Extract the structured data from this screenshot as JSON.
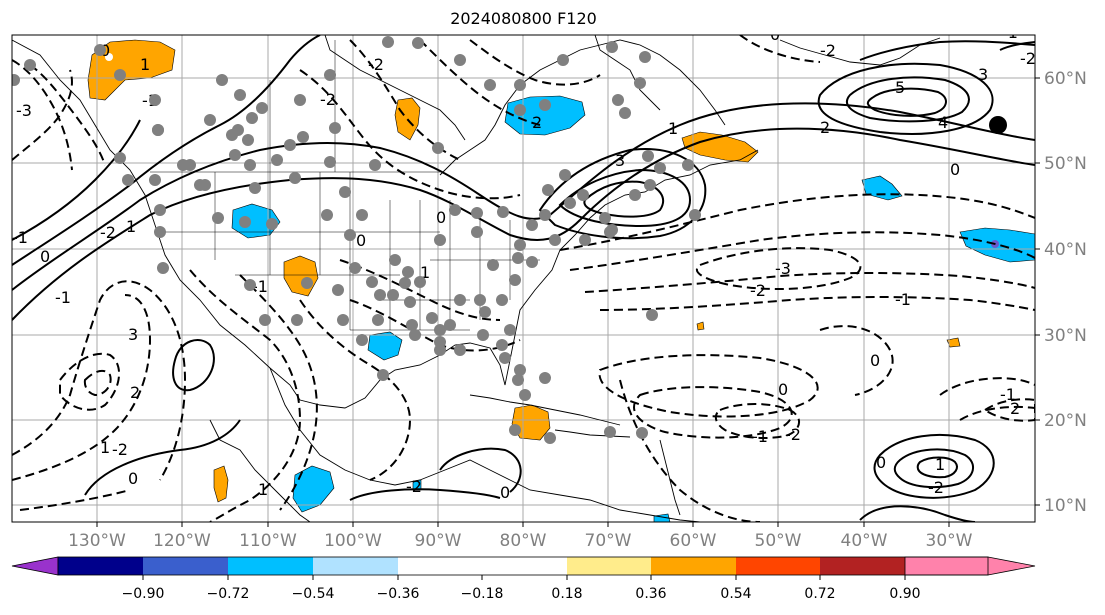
{
  "title": "2024080800 F120",
  "map": {
    "lon_ticks": [
      "130°W",
      "120°W",
      "110°W",
      "100°W",
      "90°W",
      "80°W",
      "70°W",
      "60°W",
      "50°W",
      "40°W",
      "30°W"
    ],
    "lat_ticks": [
      "60°N",
      "50°N",
      "40°N",
      "30°N",
      "20°N",
      "10°N"
    ],
    "contour_labels": [
      "-3",
      "-2",
      "-1",
      "0",
      "1",
      "2",
      "3",
      "4",
      "5",
      "-2",
      "-1",
      "0",
      "1",
      "2",
      "3",
      "-3",
      "-2",
      "-1",
      "0",
      "-2",
      "-1",
      "0",
      "1",
      "-1",
      "2",
      "-2",
      "0",
      "-1",
      "1",
      "2",
      "3",
      "-2",
      "0",
      "1",
      "-2",
      "0",
      "1",
      "0",
      "-1",
      "0",
      "-2",
      "-2",
      "-1",
      "0",
      "1",
      "0",
      "-2"
    ],
    "colors": {
      "land_outline": "#000000",
      "grid": "#a8a8a8",
      "station_dot": "#808080",
      "positive_anomaly": "#ffa500",
      "negative_anomaly": "#00bfff"
    }
  },
  "colorbar": {
    "ticks": [
      "−0.90",
      "−0.72",
      "−0.54",
      "−0.36",
      "−0.18",
      "0.18",
      "0.36",
      "0.54",
      "0.72",
      "0.90"
    ],
    "colors": [
      "#9932cc",
      "#00008b",
      "#3a5fcd",
      "#00bfff",
      "#b0e2ff",
      "#ffffff",
      "#ffec8b",
      "#ffa500",
      "#ff4500",
      "#b22222",
      "#ff82ab"
    ]
  }
}
